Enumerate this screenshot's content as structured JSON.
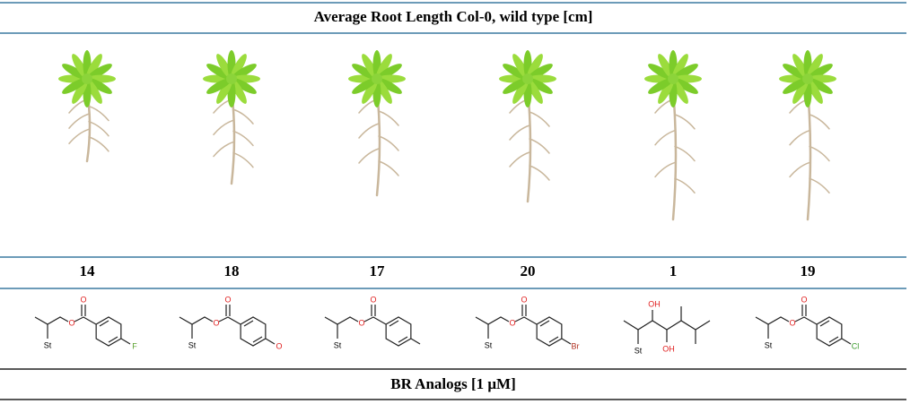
{
  "title": "Average Root Length Col-0, wild type [cm]",
  "compounds": [
    {
      "number": "14",
      "labels": [
        {
          "text": "O",
          "color": "#e02020"
        },
        {
          "text": "O",
          "color": "#e02020"
        },
        {
          "text": "St",
          "color": "#000000"
        },
        {
          "text": "F",
          "color": "#5aa02c"
        }
      ]
    },
    {
      "number": "18",
      "labels": [
        {
          "text": "O",
          "color": "#e02020"
        },
        {
          "text": "O",
          "color": "#e02020"
        },
        {
          "text": "St",
          "color": "#000000"
        },
        {
          "text": "O",
          "color": "#e02020"
        }
      ]
    },
    {
      "number": "17",
      "labels": [
        {
          "text": "O",
          "color": "#e02020"
        },
        {
          "text": "O",
          "color": "#e02020"
        },
        {
          "text": "St",
          "color": "#000000"
        }
      ]
    },
    {
      "number": "20",
      "labels": [
        {
          "text": "O",
          "color": "#e02020"
        },
        {
          "text": "O",
          "color": "#e02020"
        },
        {
          "text": "St",
          "color": "#000000"
        },
        {
          "text": "Br",
          "color": "#b03020"
        }
      ]
    },
    {
      "number": "1",
      "labels": [
        {
          "text": "OH",
          "color": "#e02020"
        },
        {
          "text": "St",
          "color": "#000000"
        },
        {
          "text": "OH",
          "color": "#e02020"
        }
      ]
    },
    {
      "number": "19",
      "labels": [
        {
          "text": "O",
          "color": "#e02020"
        },
        {
          "text": "O",
          "color": "#e02020"
        },
        {
          "text": "St",
          "color": "#000000"
        },
        {
          "text": "Cl",
          "color": "#3a9a2c"
        }
      ]
    }
  ],
  "footer": "BR  Analogs [1 μM]"
}
